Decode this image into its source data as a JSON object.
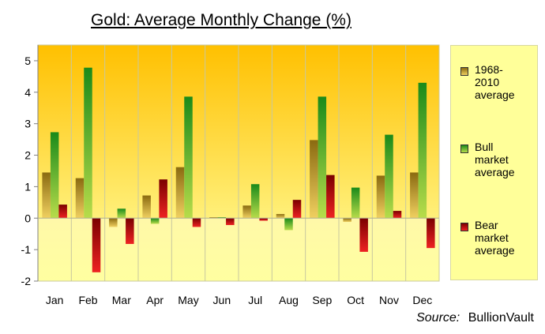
{
  "chart_data": {
    "type": "bar",
    "title": "Gold: Average Monthly Change (%)",
    "xlabel": "",
    "ylabel": "",
    "ylim": [
      -2,
      5.5
    ],
    "yticks": [
      "-2",
      "-1",
      "0",
      "1",
      "2",
      "3",
      "4",
      "5"
    ],
    "grid": false,
    "legend_position": "right",
    "categories": [
      "Jan",
      "Feb",
      "Mar",
      "Apr",
      "May",
      "Jun",
      "Jul",
      "Aug",
      "Sep",
      "Oct",
      "Nov",
      "Dec"
    ],
    "series": [
      {
        "name": "1968-2010 average",
        "color": "#c8a010",
        "values": [
          1.45,
          1.27,
          -0.28,
          0.72,
          1.62,
          0.03,
          0.4,
          0.13,
          2.48,
          -0.12,
          1.35,
          1.45
        ]
      },
      {
        "name": "Bull market average",
        "color": "#44aa22",
        "values": [
          2.73,
          4.78,
          0.3,
          -0.18,
          3.86,
          0.03,
          1.08,
          -0.38,
          3.86,
          0.97,
          2.65,
          4.3
        ]
      },
      {
        "name": "Bear market average",
        "color": "#cc0000",
        "values": [
          0.43,
          -1.72,
          -0.82,
          1.23,
          -0.28,
          -0.22,
          -0.08,
          0.58,
          1.37,
          -1.07,
          0.23,
          -0.95
        ]
      }
    ]
  },
  "legend": {
    "items": [
      {
        "line1": "1968-",
        "line2": "2010",
        "line3": "average",
        "color": "#c8a010"
      },
      {
        "line1": "Bull",
        "line2": "market",
        "line3": "average",
        "color": "#44aa22"
      },
      {
        "line1": "Bear",
        "line2": "market",
        "line3": "average",
        "color": "#cc0000"
      }
    ]
  },
  "source": {
    "key": "Source:",
    "value": "BullionVault"
  }
}
